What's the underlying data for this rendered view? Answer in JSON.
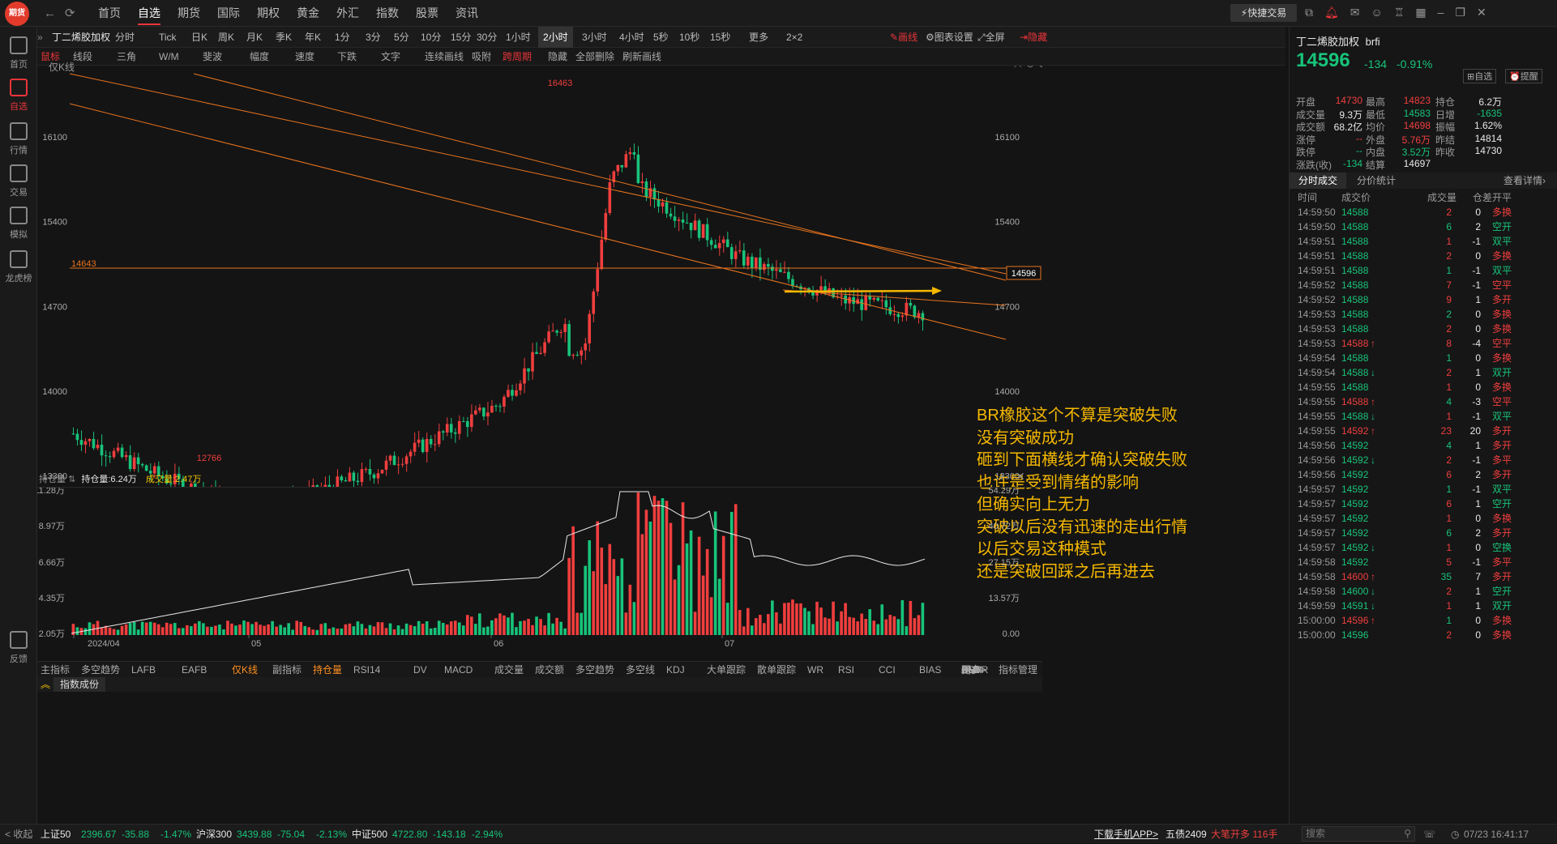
{
  "app": {
    "logo": "期货"
  },
  "topnav": {
    "items": [
      "首页",
      "自选",
      "期货",
      "国际",
      "期权",
      "黄金",
      "外汇",
      "指数",
      "股票",
      "资讯"
    ],
    "active": 1,
    "quick_trade": "快捷交易"
  },
  "sidebar": {
    "items": [
      {
        "label": "首页",
        "icon": "home-icon"
      },
      {
        "label": "自选",
        "icon": "watchlist-icon"
      },
      {
        "label": "行情",
        "icon": "quotes-icon"
      },
      {
        "label": "交易",
        "icon": "trade-icon"
      },
      {
        "label": "模拟",
        "icon": "gamepad-icon"
      },
      {
        "label": "龙虎榜",
        "icon": "database-icon"
      }
    ],
    "feedback": "反馈"
  },
  "toolbar1": {
    "instrument": "丁二烯胶加权",
    "timeframes": [
      "分时",
      "Tick",
      "日K",
      "周K",
      "月K",
      "季K",
      "年K",
      "1分",
      "3分",
      "5分",
      "10分",
      "15分",
      "30分",
      "1小时",
      "2小时",
      "3小时",
      "4小时",
      "5秒",
      "10秒",
      "15秒",
      "更多",
      "2×2"
    ],
    "selected": "2小时",
    "draw": "画线",
    "chart_settings": "图表设置",
    "fullscreen": "全屏",
    "hide": "隐藏"
  },
  "toolbar2": {
    "items": [
      "鼠标",
      "线段",
      "三角",
      "W/M",
      "斐波",
      "幅度",
      "速度",
      "下跌",
      "文字",
      "连续画线",
      "吸附",
      "跨周期",
      "隐藏",
      "全部删除",
      "刷新画线"
    ]
  },
  "chart": {
    "label": "仅K线",
    "price_ticks": [
      "16100",
      "15400",
      "14700",
      "14000",
      "13300"
    ],
    "high_label": "16463",
    "low_label": "12766",
    "hline_label": "14643",
    "last_price": "14596"
  },
  "annotation": [
    "BR橡胶这个不算是突破失败",
    "没有突破成功",
    "砸到下面横线才确认突破失败",
    "也许是受到情绪的影响",
    "但确实向上无力",
    "突破以后没有迅速的走出行情",
    "以后交易这种模式",
    "还是突破回踩之后再进去"
  ],
  "volume": {
    "label": "持仓量",
    "oi_label": "持仓量:6.24万",
    "vol_label": "成交量:2.47万",
    "left_ticks": [
      "11.28万",
      "8.97万",
      "6.66万",
      "4.35万",
      "2.05万"
    ],
    "right_ticks": [
      "54.29万",
      "40.72万",
      "27.15万",
      "13.57万",
      "0.00"
    ],
    "x_labels": [
      "2024/04",
      "05",
      "06",
      "07"
    ]
  },
  "indicators": {
    "items": [
      "主指标",
      "多空趋势",
      "LAFB",
      "EAFB",
      "仅K线",
      "副指标",
      "持仓量",
      "RSI14",
      "DV",
      "MACD",
      "成交量",
      "成交额",
      "多空趋势",
      "多空线",
      "KDJ",
      "大单跟踪",
      "散单跟踪",
      "WR",
      "RSI",
      "CCI",
      "BIAS",
      "DMA",
      "OBV",
      "PSY",
      "CR",
      "ATR",
      "DMI",
      "BRAR",
      "更多>"
    ],
    "manage": "指标管理",
    "subtab": "指数成份"
  },
  "quote": {
    "name": "丁二烯胶加权",
    "code": "brfi",
    "price": "14596",
    "change": "-134",
    "pct": "-0.91%",
    "watch": "自选",
    "alert": "提醒",
    "stats": [
      [
        "开盘",
        "14730",
        "最高",
        "14823",
        "持仓",
        "6.2万"
      ],
      [
        "成交量",
        "9.3万",
        "最低",
        "14583",
        "日增",
        "-1635"
      ],
      [
        "成交额",
        "68.2亿",
        "均价",
        "14698",
        "振幅",
        "1.62%"
      ],
      [
        "涨停",
        "--",
        "外盘",
        "5.76万",
        "昨结",
        "14814"
      ],
      [
        "跌停",
        "--",
        "内盘",
        "3.52万",
        "昨收",
        "14730"
      ],
      [
        "涨跌(收)",
        "-134",
        "结算",
        "14697",
        "",
        ""
      ]
    ],
    "tabs": [
      "分时成交",
      "分价统计"
    ],
    "details": "查看详情›",
    "headers": [
      "时间",
      "成交价",
      "成交量",
      "仓差",
      "开平"
    ]
  },
  "trades": [
    [
      "14:59:50",
      "14588",
      "",
      "2",
      "0",
      "多换"
    ],
    [
      "14:59:50",
      "14588",
      "",
      "6",
      "2",
      "空开"
    ],
    [
      "14:59:51",
      "14588",
      "",
      "1",
      "-1",
      "双平"
    ],
    [
      "14:59:51",
      "14588",
      "",
      "2",
      "0",
      "多换"
    ],
    [
      "14:59:51",
      "14588",
      "",
      "1",
      "-1",
      "双平"
    ],
    [
      "14:59:52",
      "14588",
      "",
      "7",
      "-1",
      "空平"
    ],
    [
      "14:59:52",
      "14588",
      "",
      "9",
      "1",
      "多开"
    ],
    [
      "14:59:53",
      "14588",
      "",
      "2",
      "0",
      "多换"
    ],
    [
      "14:59:53",
      "14588",
      "",
      "2",
      "0",
      "多换"
    ],
    [
      "14:59:53",
      "14588",
      "↑",
      "8",
      "-4",
      "空平"
    ],
    [
      "14:59:54",
      "14588",
      "",
      "1",
      "0",
      "多换"
    ],
    [
      "14:59:54",
      "14588",
      "↓",
      "2",
      "1",
      "双开"
    ],
    [
      "14:59:55",
      "14588",
      "",
      "1",
      "0",
      "多换"
    ],
    [
      "14:59:55",
      "14588",
      "↑",
      "4",
      "-3",
      "空平"
    ],
    [
      "14:59:55",
      "14588",
      "↓",
      "1",
      "-1",
      "双平"
    ],
    [
      "14:59:55",
      "14592",
      "↑",
      "23",
      "20",
      "多开"
    ],
    [
      "14:59:56",
      "14592",
      "",
      "4",
      "1",
      "多开"
    ],
    [
      "14:59:56",
      "14592",
      "↓",
      "2",
      "-1",
      "多平"
    ],
    [
      "14:59:56",
      "14592",
      "",
      "6",
      "2",
      "多开"
    ],
    [
      "14:59:57",
      "14592",
      "",
      "1",
      "-1",
      "双平"
    ],
    [
      "14:59:57",
      "14592",
      "",
      "6",
      "1",
      "空开"
    ],
    [
      "14:59:57",
      "14592",
      "",
      "1",
      "0",
      "多换"
    ],
    [
      "14:59:57",
      "14592",
      "",
      "6",
      "2",
      "多开"
    ],
    [
      "14:59:57",
      "14592",
      "↓",
      "1",
      "0",
      "空换"
    ],
    [
      "14:59:58",
      "14592",
      "",
      "5",
      "-1",
      "多平"
    ],
    [
      "14:59:58",
      "14600",
      "↑",
      "35",
      "7",
      "多开"
    ],
    [
      "14:59:58",
      "14600",
      "↓",
      "2",
      "1",
      "空开"
    ],
    [
      "14:59:59",
      "14591",
      "↓",
      "1",
      "1",
      "双开"
    ],
    [
      "15:00:00",
      "14596",
      "↑",
      "1",
      "0",
      "多换"
    ],
    [
      "15:00:00",
      "14596",
      "",
      "2",
      "0",
      "多换"
    ]
  ],
  "status": {
    "collapse": "< 收起",
    "indices": [
      [
        "上证50",
        "2396.67",
        "-35.88",
        "-1.47%"
      ],
      [
        "沪深300",
        "3439.88",
        "-75.04",
        "-2.13%"
      ],
      [
        "中证500",
        "4722.80",
        "-143.18",
        "-2.94%"
      ]
    ],
    "app_dl": "下载手机APP>",
    "ticker": "五债2409",
    "ticker_msg": "大笔开多 116手",
    "search": "搜索",
    "datetime": "07/23 16:41:17"
  },
  "colors": {
    "up": "#f03e3e",
    "down": "#18c37a",
    "channel": "#e8741e",
    "annotation": "#f5b800",
    "bg": "#141414"
  }
}
